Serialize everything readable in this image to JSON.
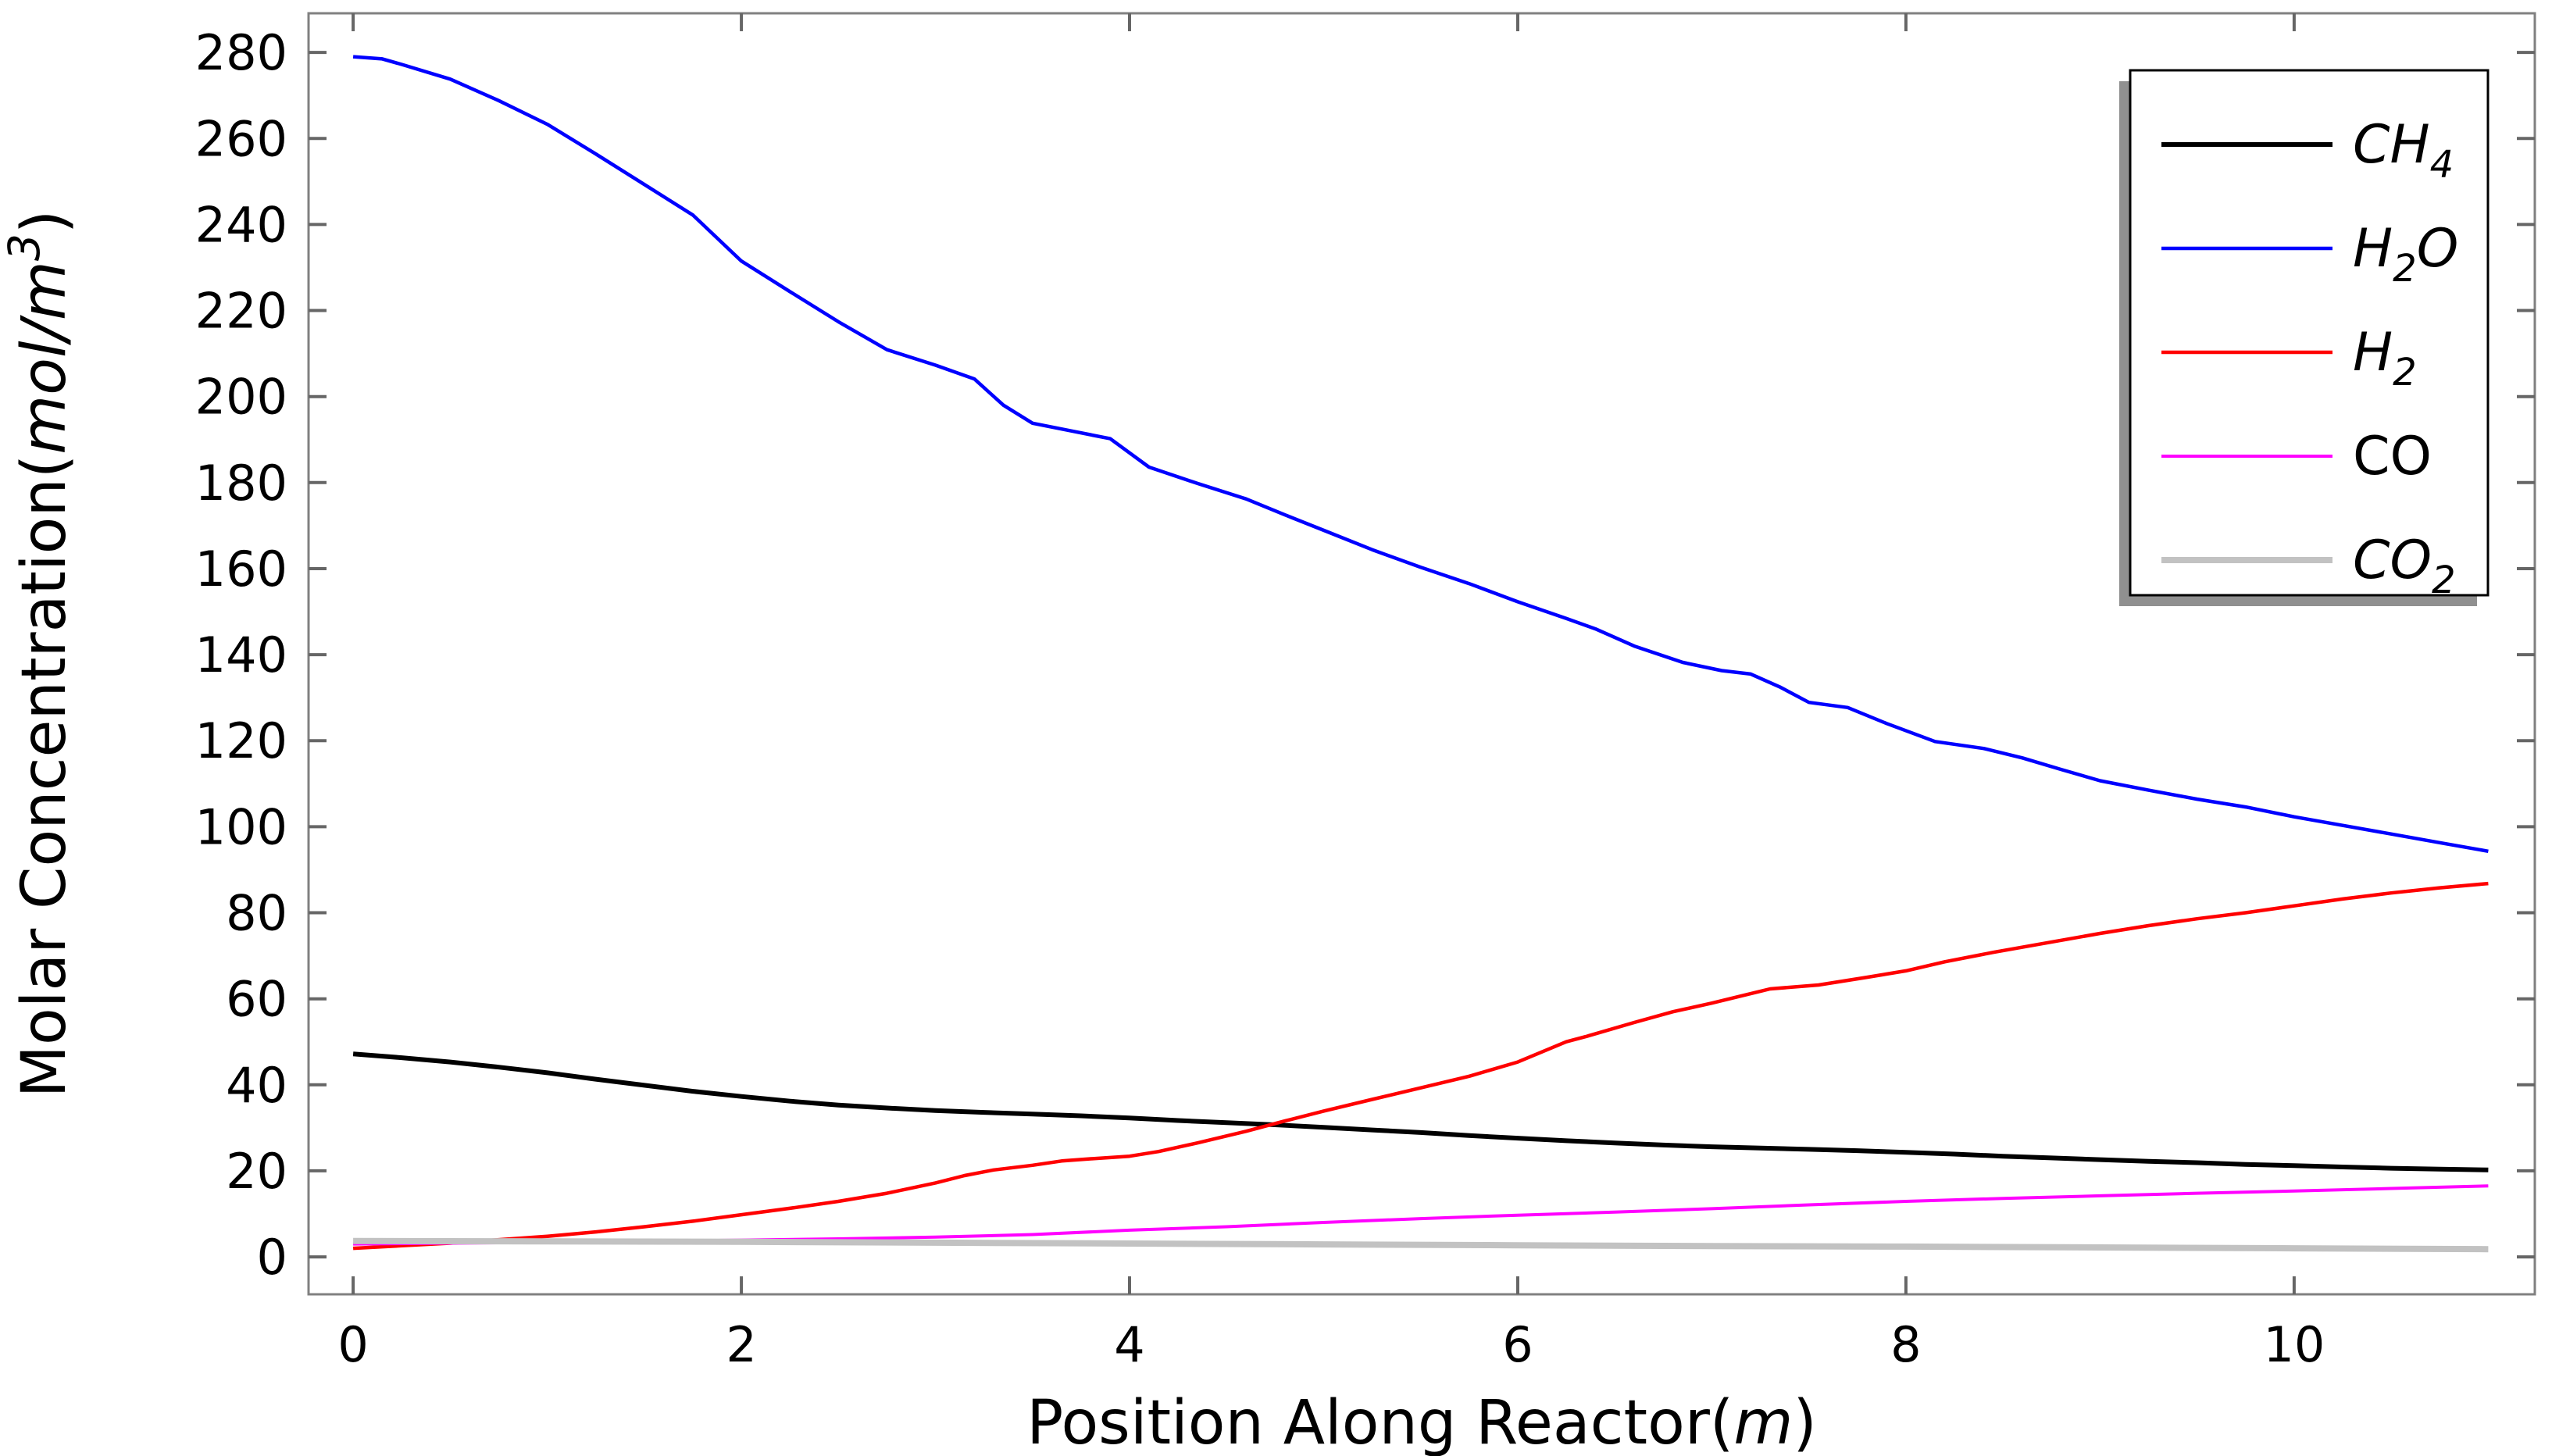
{
  "figure": {
    "background": "#ffffff",
    "frame_color": "#808080",
    "tick_color": "#666666",
    "text_color": "#000000",
    "legend_border_color": "#000000",
    "legend_shadow_color": "#909090",
    "legend_bg": "#ffffff"
  },
  "chart_data": {
    "type": "line",
    "title": "",
    "xlabel": "Position Along Reactor(m)",
    "ylabel": "Molar Concentration(mol/m3)",
    "xlabel_parts": [
      {
        "t": "Position Along Reactor("
      },
      {
        "t": "m",
        "italic": true
      },
      {
        "t": ")"
      }
    ],
    "ylabel_parts": [
      {
        "t": "Molar Concentration("
      },
      {
        "t": "mol/m",
        "italic": true
      },
      {
        "t": "3",
        "italic": true,
        "sup": true
      },
      {
        "t": ")"
      }
    ],
    "xlim": [
      -0.23,
      11.24
    ],
    "ylim": [
      -8.7,
      289.1
    ],
    "x_ticks": [
      0,
      2,
      4,
      6,
      8,
      10
    ],
    "y_ticks": [
      0,
      20,
      40,
      60,
      80,
      100,
      120,
      140,
      160,
      180,
      200,
      220,
      240,
      260,
      280
    ],
    "grid": false,
    "legend_position": "top-right",
    "legend": [
      {
        "name": "CH4",
        "parts": [
          {
            "t": "CH",
            "italic": true
          },
          {
            "t": "4",
            "italic": true,
            "sub": true
          }
        ],
        "color": "#000000",
        "width": 6
      },
      {
        "name": "H2O",
        "parts": [
          {
            "t": "H",
            "italic": true
          },
          {
            "t": "2",
            "italic": true,
            "sub": true
          },
          {
            "t": "O",
            "italic": true
          }
        ],
        "color": "#0000ff",
        "width": 4.5
      },
      {
        "name": "H2",
        "parts": [
          {
            "t": "H",
            "italic": true
          },
          {
            "t": "2",
            "italic": true,
            "sub": true
          }
        ],
        "color": "#ff0000",
        "width": 4.5
      },
      {
        "name": "CO",
        "parts": [
          {
            "t": "CO"
          }
        ],
        "color": "#ff00ff",
        "width": 4
      },
      {
        "name": "CO2",
        "parts": [
          {
            "t": "CO",
            "italic": true
          },
          {
            "t": "2",
            "italic": true,
            "sub": true
          }
        ],
        "color": "#c2c2c2",
        "width": 8
      }
    ],
    "series": [
      {
        "name": "CH4",
        "color": "#000000",
        "width": 6,
        "points": [
          [
            0,
            47.2
          ],
          [
            0.25,
            46.3
          ],
          [
            0.5,
            45.3
          ],
          [
            0.75,
            44.1
          ],
          [
            1,
            42.8
          ],
          [
            1.25,
            41.3
          ],
          [
            1.5,
            39.9
          ],
          [
            1.75,
            38.5
          ],
          [
            2,
            37.3
          ],
          [
            2.25,
            36.2
          ],
          [
            2.5,
            35.3
          ],
          [
            2.75,
            34.6
          ],
          [
            3,
            34
          ],
          [
            3.25,
            33.6
          ],
          [
            3.5,
            33.2
          ],
          [
            3.75,
            32.8
          ],
          [
            4,
            32.3
          ],
          [
            4.25,
            31.7
          ],
          [
            4.5,
            31.2
          ],
          [
            4.75,
            30.7
          ],
          [
            5,
            30.1
          ],
          [
            5.25,
            29.5
          ],
          [
            5.5,
            28.9
          ],
          [
            5.75,
            28.2
          ],
          [
            6,
            27.6
          ],
          [
            6.25,
            27
          ],
          [
            6.5,
            26.5
          ],
          [
            6.75,
            26
          ],
          [
            7,
            25.6
          ],
          [
            7.25,
            25.3
          ],
          [
            7.5,
            25
          ],
          [
            7.75,
            24.7
          ],
          [
            8,
            24.3
          ],
          [
            8.25,
            23.9
          ],
          [
            8.5,
            23.4
          ],
          [
            8.75,
            23
          ],
          [
            9,
            22.6
          ],
          [
            9.25,
            22.2
          ],
          [
            9.5,
            21.9
          ],
          [
            9.75,
            21.5
          ],
          [
            10,
            21.2
          ],
          [
            10.25,
            20.9
          ],
          [
            10.5,
            20.6
          ],
          [
            10.75,
            20.4
          ],
          [
            11,
            20.2
          ]
        ]
      },
      {
        "name": "H2O",
        "color": "#0000ff",
        "width": 4.5,
        "points": [
          [
            0,
            279
          ],
          [
            0.15,
            278.5
          ],
          [
            0.25,
            277.2
          ],
          [
            0.5,
            273.8
          ],
          [
            0.75,
            268.8
          ],
          [
            1,
            263.3
          ],
          [
            1.25,
            256.4
          ],
          [
            1.5,
            249.3
          ],
          [
            1.75,
            242.2
          ],
          [
            2,
            231.5
          ],
          [
            2.25,
            224.4
          ],
          [
            2.5,
            217.4
          ],
          [
            2.75,
            210.9
          ],
          [
            3,
            207.3
          ],
          [
            3.2,
            204.1
          ],
          [
            3.35,
            198
          ],
          [
            3.5,
            193.8
          ],
          [
            3.7,
            192
          ],
          [
            3.9,
            190.2
          ],
          [
            4.1,
            183.6
          ],
          [
            4.35,
            179.8
          ],
          [
            4.6,
            176.2
          ],
          [
            4.8,
            172.5
          ],
          [
            5,
            168.9
          ],
          [
            5.25,
            164.4
          ],
          [
            5.5,
            160.3
          ],
          [
            5.75,
            156.5
          ],
          [
            6,
            152.3
          ],
          [
            6.25,
            148.4
          ],
          [
            6.4,
            146
          ],
          [
            6.6,
            142
          ],
          [
            6.85,
            138.2
          ],
          [
            7.05,
            136.3
          ],
          [
            7.2,
            135.5
          ],
          [
            7.35,
            132.5
          ],
          [
            7.5,
            128.9
          ],
          [
            7.7,
            127.7
          ],
          [
            7.9,
            124
          ],
          [
            8.15,
            119.8
          ],
          [
            8.4,
            118.2
          ],
          [
            8.6,
            116
          ],
          [
            8.8,
            113.3
          ],
          [
            9,
            110.7
          ],
          [
            9.25,
            108.5
          ],
          [
            9.5,
            106.4
          ],
          [
            9.75,
            104.6
          ],
          [
            10,
            102.3
          ],
          [
            10.25,
            100.3
          ],
          [
            10.5,
            98.3
          ],
          [
            10.75,
            96.3
          ],
          [
            11,
            94.3
          ]
        ]
      },
      {
        "name": "H2",
        "color": "#ff0000",
        "width": 4.5,
        "points": [
          [
            0,
            2
          ],
          [
            0.25,
            2.6
          ],
          [
            0.5,
            3.2
          ],
          [
            0.75,
            4
          ],
          [
            1,
            4.8
          ],
          [
            1.25,
            5.8
          ],
          [
            1.5,
            7
          ],
          [
            1.75,
            8.3
          ],
          [
            2,
            9.8
          ],
          [
            2.25,
            11.3
          ],
          [
            2.5,
            12.9
          ],
          [
            2.75,
            14.8
          ],
          [
            3,
            17.2
          ],
          [
            3.15,
            18.9
          ],
          [
            3.3,
            20.2
          ],
          [
            3.5,
            21.3
          ],
          [
            3.65,
            22.3
          ],
          [
            3.8,
            22.8
          ],
          [
            4,
            23.4
          ],
          [
            4.15,
            24.5
          ],
          [
            4.35,
            26.5
          ],
          [
            4.6,
            29.2
          ],
          [
            4.8,
            31.6
          ],
          [
            5,
            33.9
          ],
          [
            5.25,
            36.6
          ],
          [
            5.5,
            39.3
          ],
          [
            5.75,
            42
          ],
          [
            6,
            45.3
          ],
          [
            6.25,
            50
          ],
          [
            6.35,
            51.2
          ],
          [
            6.6,
            54.5
          ],
          [
            6.8,
            57
          ],
          [
            7,
            59
          ],
          [
            7.3,
            62.3
          ],
          [
            7.55,
            63.2
          ],
          [
            7.8,
            65
          ],
          [
            8,
            66.5
          ],
          [
            8.2,
            68.6
          ],
          [
            8.45,
            70.8
          ],
          [
            8.7,
            72.8
          ],
          [
            9,
            75.2
          ],
          [
            9.25,
            77
          ],
          [
            9.5,
            78.6
          ],
          [
            9.75,
            80
          ],
          [
            10,
            81.6
          ],
          [
            10.25,
            83.2
          ],
          [
            10.5,
            84.6
          ],
          [
            10.75,
            85.8
          ],
          [
            11,
            86.8
          ]
        ]
      },
      {
        "name": "CO",
        "color": "#ff00ff",
        "width": 4,
        "points": [
          [
            0,
            3
          ],
          [
            0.5,
            3.2
          ],
          [
            1,
            3.4
          ],
          [
            1.5,
            3.6
          ],
          [
            2,
            3.9
          ],
          [
            2.5,
            4.2
          ],
          [
            3,
            4.6
          ],
          [
            3.5,
            5.2
          ],
          [
            4,
            6.2
          ],
          [
            4.5,
            7
          ],
          [
            5,
            8
          ],
          [
            5.5,
            8.9
          ],
          [
            6,
            9.7
          ],
          [
            6.5,
            10.4
          ],
          [
            7,
            11.2
          ],
          [
            7.5,
            12.1
          ],
          [
            8,
            12.9
          ],
          [
            8.5,
            13.6
          ],
          [
            9,
            14.2
          ],
          [
            9.5,
            14.8
          ],
          [
            10,
            15.3
          ],
          [
            10.5,
            15.9
          ],
          [
            11,
            16.5
          ]
        ]
      },
      {
        "name": "CO2",
        "color": "#c2c2c2",
        "width": 8,
        "points": [
          [
            0,
            3.7
          ],
          [
            1,
            3.6
          ],
          [
            2,
            3.5
          ],
          [
            3,
            3.3
          ],
          [
            4,
            3.1
          ],
          [
            5,
            2.9
          ],
          [
            6,
            2.7
          ],
          [
            7,
            2.5
          ],
          [
            8,
            2.4
          ],
          [
            9,
            2.2
          ],
          [
            10,
            2
          ],
          [
            11,
            1.8
          ]
        ]
      }
    ]
  },
  "layout_values": {
    "x_tick_labels": [
      "0",
      "2",
      "4",
      "6",
      "8",
      "10"
    ],
    "y_tick_labels": [
      "0",
      "20",
      "40",
      "60",
      "80",
      "100",
      "120",
      "140",
      "160",
      "180",
      "200",
      "220",
      "240",
      "260",
      "280"
    ]
  }
}
